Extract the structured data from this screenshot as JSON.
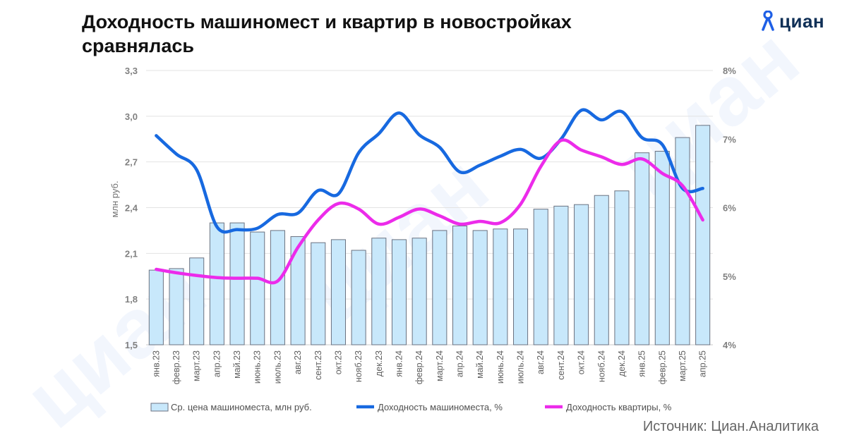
{
  "title": "Доходность машиномест и квартир в новостройках сравнялась",
  "logo": {
    "text": "циан",
    "icon": "cian-pin-icon"
  },
  "watermark_text": "циан",
  "source": "Источник: Циан.Аналитика",
  "colors": {
    "bar_fill": "#c8e8fb",
    "bar_stroke": "#6b7280",
    "parking_line": "#1769e0",
    "apartment_line": "#ec2bea",
    "grid": "#e3e3e3",
    "logo_accent": "#1e5fe6"
  },
  "chart_data": {
    "type": "bar",
    "title": "Доходность машиномест и квартир в новостройках сравнялась",
    "ylabel": "млн руб.",
    "ylim": [
      1.5,
      3.3
    ],
    "yticks": [
      "1,5",
      "1,8",
      "2,1",
      "2,4",
      "2,7",
      "3,0",
      "3,3"
    ],
    "y2lim": [
      4,
      8
    ],
    "y2ticks": [
      "4%",
      "5%",
      "6%",
      "7%",
      "8%"
    ],
    "categories": [
      "янв.23",
      "февр.23",
      "март.23",
      "апр.23",
      "май.23",
      "июнь.23",
      "июль.23",
      "авг.23",
      "сент.23",
      "окт.23",
      "нояб.23",
      "дек.23",
      "янв.24",
      "февр.24",
      "март.24",
      "апр.24",
      "май.24",
      "июнь.24",
      "июль.24",
      "авг.24",
      "сент.24",
      "окт.24",
      "нояб.24",
      "дек.24",
      "янв.25",
      "февр.25",
      "март.25",
      "апр.25"
    ],
    "series": [
      {
        "name": "Ср. цена машиноместа, млн руб.",
        "type": "bar",
        "axis": "left",
        "values": [
          1.99,
          2.0,
          2.07,
          2.3,
          2.3,
          2.24,
          2.25,
          2.21,
          2.17,
          2.19,
          2.12,
          2.2,
          2.19,
          2.2,
          2.25,
          2.28,
          2.25,
          2.26,
          2.26,
          2.39,
          2.41,
          2.42,
          2.48,
          2.51,
          2.76,
          2.77,
          2.86,
          2.94
        ]
      },
      {
        "name": "Доходность машиноместа, %",
        "type": "line",
        "axis": "right",
        "values": [
          7.05,
          6.78,
          6.55,
          5.72,
          5.68,
          5.7,
          5.9,
          5.92,
          6.25,
          6.2,
          6.8,
          7.08,
          7.38,
          7.06,
          6.88,
          6.52,
          6.62,
          6.75,
          6.85,
          6.72,
          7.0,
          7.42,
          7.28,
          7.4,
          7.02,
          6.92,
          6.28,
          6.28
        ]
      },
      {
        "name": "Доходность квартиры, %",
        "type": "line",
        "axis": "right",
        "values": [
          5.1,
          5.05,
          5.01,
          4.98,
          4.97,
          4.97,
          4.93,
          5.42,
          5.82,
          6.06,
          5.98,
          5.76,
          5.86,
          5.98,
          5.88,
          5.76,
          5.8,
          5.78,
          6.05,
          6.6,
          6.98,
          6.84,
          6.74,
          6.63,
          6.71,
          6.5,
          6.32,
          5.82
        ]
      }
    ]
  }
}
